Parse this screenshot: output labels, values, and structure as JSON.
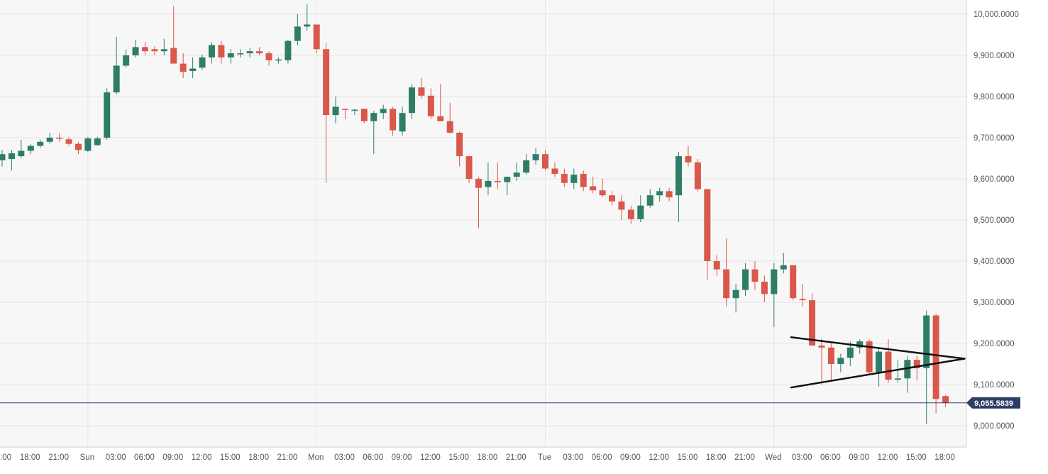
{
  "colors": {
    "plot_background": "#f7f7f7",
    "grid": "#e4e4e4",
    "axis_text": "#555555",
    "up": "#2e7d67",
    "down": "#d9584a",
    "price_line": "#2c3e66",
    "price_badge_bg": "#2c3e66",
    "price_badge_text": "#ffffff",
    "trendline": "#111111"
  },
  "chart_data": {
    "type": "candlestick",
    "title": "",
    "interval": "1 hour",
    "ylim": [
      8970,
      10035
    ],
    "grid": true,
    "y_ticks": [
      {
        "value": 10000,
        "label": "10,000.0000"
      },
      {
        "value": 9900,
        "label": "9,900.0000"
      },
      {
        "value": 9800,
        "label": "9,800.0000"
      },
      {
        "value": 9700,
        "label": "9,700.0000"
      },
      {
        "value": 9600,
        "label": "9,600.0000"
      },
      {
        "value": 9500,
        "label": "9,500.0000"
      },
      {
        "value": 9400,
        "label": "9,400.0000"
      },
      {
        "value": 9300,
        "label": "9,300.0000"
      },
      {
        "value": 9200,
        "label": "9,200.0000"
      },
      {
        "value": 9100,
        "label": "9,100.0000"
      },
      {
        "value": 9000,
        "label": "9,000.0000"
      }
    ],
    "x_ticks": [
      {
        "bar": 0,
        "label": ":00"
      },
      {
        "bar": 3,
        "label": "18:00"
      },
      {
        "bar": 6,
        "label": "21:00"
      },
      {
        "bar": 9,
        "label": "Sun"
      },
      {
        "bar": 12,
        "label": "03:00"
      },
      {
        "bar": 15,
        "label": "06:00"
      },
      {
        "bar": 18,
        "label": "09:00"
      },
      {
        "bar": 21,
        "label": "12:00"
      },
      {
        "bar": 24,
        "label": "15:00"
      },
      {
        "bar": 27,
        "label": "18:00"
      },
      {
        "bar": 30,
        "label": "21:00"
      },
      {
        "bar": 33,
        "label": "Mon"
      },
      {
        "bar": 36,
        "label": "03:00"
      },
      {
        "bar": 39,
        "label": "06:00"
      },
      {
        "bar": 42,
        "label": "09:00"
      },
      {
        "bar": 45,
        "label": "12:00"
      },
      {
        "bar": 48,
        "label": "15:00"
      },
      {
        "bar": 51,
        "label": "18:00"
      },
      {
        "bar": 54,
        "label": "21:00"
      },
      {
        "bar": 57,
        "label": "Tue"
      },
      {
        "bar": 60,
        "label": "03:00"
      },
      {
        "bar": 63,
        "label": "06:00"
      },
      {
        "bar": 66,
        "label": "09:00"
      },
      {
        "bar": 69,
        "label": "12:00"
      },
      {
        "bar": 72,
        "label": "15:00"
      },
      {
        "bar": 75,
        "label": "18:00"
      },
      {
        "bar": 78,
        "label": "21:00"
      },
      {
        "bar": 81,
        "label": "Wed"
      },
      {
        "bar": 84,
        "label": "03:00"
      },
      {
        "bar": 87,
        "label": "06:00"
      },
      {
        "bar": 90,
        "label": "09:00"
      },
      {
        "bar": 93,
        "label": "12:00"
      },
      {
        "bar": 96,
        "label": "15:00"
      },
      {
        "bar": 99,
        "label": "18:00"
      }
    ],
    "candles": [
      {
        "o": 9645,
        "h": 9670,
        "l": 9630,
        "c": 9660
      },
      {
        "o": 9648,
        "h": 9670,
        "l": 9620,
        "c": 9662
      },
      {
        "o": 9655,
        "h": 9695,
        "l": 9650,
        "c": 9668
      },
      {
        "o": 9668,
        "h": 9685,
        "l": 9660,
        "c": 9680
      },
      {
        "o": 9680,
        "h": 9695,
        "l": 9675,
        "c": 9690
      },
      {
        "o": 9690,
        "h": 9712,
        "l": 9685,
        "c": 9700
      },
      {
        "o": 9700,
        "h": 9710,
        "l": 9690,
        "c": 9698
      },
      {
        "o": 9696,
        "h": 9702,
        "l": 9680,
        "c": 9685
      },
      {
        "o": 9685,
        "h": 9690,
        "l": 9660,
        "c": 9670
      },
      {
        "o": 9668,
        "h": 9702,
        "l": 9665,
        "c": 9698
      },
      {
        "o": 9682,
        "h": 9702,
        "l": 9680,
        "c": 9698
      },
      {
        "o": 9700,
        "h": 9820,
        "l": 9695,
        "c": 9810
      },
      {
        "o": 9810,
        "h": 9945,
        "l": 9805,
        "c": 9875
      },
      {
        "o": 9875,
        "h": 9915,
        "l": 9870,
        "c": 9900
      },
      {
        "o": 9900,
        "h": 9938,
        "l": 9895,
        "c": 9920
      },
      {
        "o": 9920,
        "h": 9932,
        "l": 9900,
        "c": 9910
      },
      {
        "o": 9915,
        "h": 9922,
        "l": 9900,
        "c": 9910
      },
      {
        "o": 9910,
        "h": 9940,
        "l": 9900,
        "c": 9915
      },
      {
        "o": 9918,
        "h": 10020,
        "l": 9880,
        "c": 9880
      },
      {
        "o": 9880,
        "h": 9905,
        "l": 9845,
        "c": 9860
      },
      {
        "o": 9862,
        "h": 9895,
        "l": 9845,
        "c": 9868
      },
      {
        "o": 9870,
        "h": 9902,
        "l": 9865,
        "c": 9895
      },
      {
        "o": 9895,
        "h": 9932,
        "l": 9880,
        "c": 9925
      },
      {
        "o": 9925,
        "h": 9935,
        "l": 9880,
        "c": 9895
      },
      {
        "o": 9895,
        "h": 9915,
        "l": 9880,
        "c": 9905
      },
      {
        "o": 9905,
        "h": 9915,
        "l": 9895,
        "c": 9905
      },
      {
        "o": 9905,
        "h": 9918,
        "l": 9895,
        "c": 9910
      },
      {
        "o": 9910,
        "h": 9920,
        "l": 9900,
        "c": 9905
      },
      {
        "o": 9905,
        "h": 9910,
        "l": 9875,
        "c": 9888
      },
      {
        "o": 9888,
        "h": 9895,
        "l": 9880,
        "c": 9890
      },
      {
        "o": 9888,
        "h": 9938,
        "l": 9880,
        "c": 9935
      },
      {
        "o": 9935,
        "h": 10000,
        "l": 9925,
        "c": 9970
      },
      {
        "o": 9970,
        "h": 10025,
        "l": 9960,
        "c": 9975
      },
      {
        "o": 9975,
        "h": 9975,
        "l": 9905,
        "c": 9915
      },
      {
        "o": 9915,
        "h": 9930,
        "l": 9590,
        "c": 9755
      },
      {
        "o": 9755,
        "h": 9800,
        "l": 9735,
        "c": 9775
      },
      {
        "o": 9770,
        "h": 9770,
        "l": 9745,
        "c": 9768
      },
      {
        "o": 9768,
        "h": 9770,
        "l": 9755,
        "c": 9768
      },
      {
        "o": 9770,
        "h": 9770,
        "l": 9735,
        "c": 9740
      },
      {
        "o": 9740,
        "h": 9765,
        "l": 9660,
        "c": 9760
      },
      {
        "o": 9760,
        "h": 9780,
        "l": 9745,
        "c": 9770
      },
      {
        "o": 9770,
        "h": 9775,
        "l": 9705,
        "c": 9718
      },
      {
        "o": 9715,
        "h": 9775,
        "l": 9705,
        "c": 9760
      },
      {
        "o": 9760,
        "h": 9830,
        "l": 9745,
        "c": 9822
      },
      {
        "o": 9822,
        "h": 9845,
        "l": 9795,
        "c": 9802
      },
      {
        "o": 9802,
        "h": 9820,
        "l": 9745,
        "c": 9752
      },
      {
        "o": 9752,
        "h": 9830,
        "l": 9740,
        "c": 9740
      },
      {
        "o": 9740,
        "h": 9785,
        "l": 9710,
        "c": 9712
      },
      {
        "o": 9712,
        "h": 9715,
        "l": 9630,
        "c": 9655
      },
      {
        "o": 9655,
        "h": 9655,
        "l": 9590,
        "c": 9600
      },
      {
        "o": 9600,
        "h": 9605,
        "l": 9480,
        "c": 9578
      },
      {
        "o": 9580,
        "h": 9640,
        "l": 9560,
        "c": 9595
      },
      {
        "o": 9595,
        "h": 9640,
        "l": 9575,
        "c": 9592
      },
      {
        "o": 9592,
        "h": 9605,
        "l": 9560,
        "c": 9605
      },
      {
        "o": 9605,
        "h": 9640,
        "l": 9595,
        "c": 9615
      },
      {
        "o": 9615,
        "h": 9660,
        "l": 9610,
        "c": 9645
      },
      {
        "o": 9645,
        "h": 9675,
        "l": 9635,
        "c": 9660
      },
      {
        "o": 9660,
        "h": 9670,
        "l": 9620,
        "c": 9625
      },
      {
        "o": 9625,
        "h": 9640,
        "l": 9605,
        "c": 9612
      },
      {
        "o": 9612,
        "h": 9625,
        "l": 9580,
        "c": 9590
      },
      {
        "o": 9590,
        "h": 9625,
        "l": 9575,
        "c": 9610
      },
      {
        "o": 9612,
        "h": 9620,
        "l": 9570,
        "c": 9580
      },
      {
        "o": 9582,
        "h": 9605,
        "l": 9565,
        "c": 9572
      },
      {
        "o": 9572,
        "h": 9600,
        "l": 9555,
        "c": 9560
      },
      {
        "o": 9560,
        "h": 9570,
        "l": 9535,
        "c": 9545
      },
      {
        "o": 9545,
        "h": 9560,
        "l": 9500,
        "c": 9525
      },
      {
        "o": 9525,
        "h": 9535,
        "l": 9490,
        "c": 9502
      },
      {
        "o": 9502,
        "h": 9560,
        "l": 9495,
        "c": 9535
      },
      {
        "o": 9535,
        "h": 9575,
        "l": 9530,
        "c": 9560
      },
      {
        "o": 9560,
        "h": 9578,
        "l": 9545,
        "c": 9570
      },
      {
        "o": 9570,
        "h": 9578,
        "l": 9545,
        "c": 9555
      },
      {
        "o": 9560,
        "h": 9665,
        "l": 9495,
        "c": 9655
      },
      {
        "o": 9655,
        "h": 9680,
        "l": 9630,
        "c": 9640
      },
      {
        "o": 9640,
        "h": 9648,
        "l": 9570,
        "c": 9575
      },
      {
        "o": 9575,
        "h": 9575,
        "l": 9355,
        "c": 9400
      },
      {
        "o": 9400,
        "h": 9415,
        "l": 9365,
        "c": 9380
      },
      {
        "o": 9380,
        "h": 9455,
        "l": 9290,
        "c": 9310
      },
      {
        "o": 9310,
        "h": 9345,
        "l": 9275,
        "c": 9330
      },
      {
        "o": 9330,
        "h": 9395,
        "l": 9315,
        "c": 9380
      },
      {
        "o": 9380,
        "h": 9400,
        "l": 9330,
        "c": 9350
      },
      {
        "o": 9350,
        "h": 9365,
        "l": 9300,
        "c": 9320
      },
      {
        "o": 9320,
        "h": 9395,
        "l": 9240,
        "c": 9380
      },
      {
        "o": 9380,
        "h": 9420,
        "l": 9370,
        "c": 9390
      },
      {
        "o": 9390,
        "h": 9390,
        "l": 9305,
        "c": 9310
      },
      {
        "o": 9308,
        "h": 9345,
        "l": 9290,
        "c": 9305
      },
      {
        "o": 9305,
        "h": 9322,
        "l": 9195,
        "c": 9195
      },
      {
        "o": 9195,
        "h": 9212,
        "l": 9100,
        "c": 9190
      },
      {
        "o": 9190,
        "h": 9200,
        "l": 9110,
        "c": 9150
      },
      {
        "o": 9150,
        "h": 9175,
        "l": 9130,
        "c": 9165
      },
      {
        "o": 9165,
        "h": 9205,
        "l": 9145,
        "c": 9190
      },
      {
        "o": 9190,
        "h": 9210,
        "l": 9175,
        "c": 9205
      },
      {
        "o": 9205,
        "h": 9210,
        "l": 9125,
        "c": 9130
      },
      {
        "o": 9130,
        "h": 9190,
        "l": 9095,
        "c": 9180
      },
      {
        "o": 9180,
        "h": 9210,
        "l": 9105,
        "c": 9112
      },
      {
        "o": 9112,
        "h": 9160,
        "l": 9105,
        "c": 9115
      },
      {
        "o": 9115,
        "h": 9170,
        "l": 9080,
        "c": 9160
      },
      {
        "o": 9160,
        "h": 9170,
        "l": 9110,
        "c": 9140
      },
      {
        "o": 9140,
        "h": 9280,
        "l": 9005,
        "c": 9268
      },
      {
        "o": 9268,
        "h": 9272,
        "l": 9030,
        "c": 9065
      },
      {
        "o": 9072,
        "h": 9075,
        "l": 9045,
        "c": 9056
      }
    ],
    "current_price": {
      "value": 9055.5839,
      "label": "9,055.5839"
    },
    "annotations": [
      {
        "type": "trendline",
        "name": "upper-triangle-line",
        "from": {
          "bar": 82.8,
          "price": 9215
        },
        "to": {
          "bar": 101.0,
          "price": 9163
        }
      },
      {
        "type": "trendline",
        "name": "lower-triangle-line",
        "from": {
          "bar": 82.8,
          "price": 9093
        },
        "to": {
          "bar": 101.0,
          "price": 9163
        }
      }
    ]
  }
}
